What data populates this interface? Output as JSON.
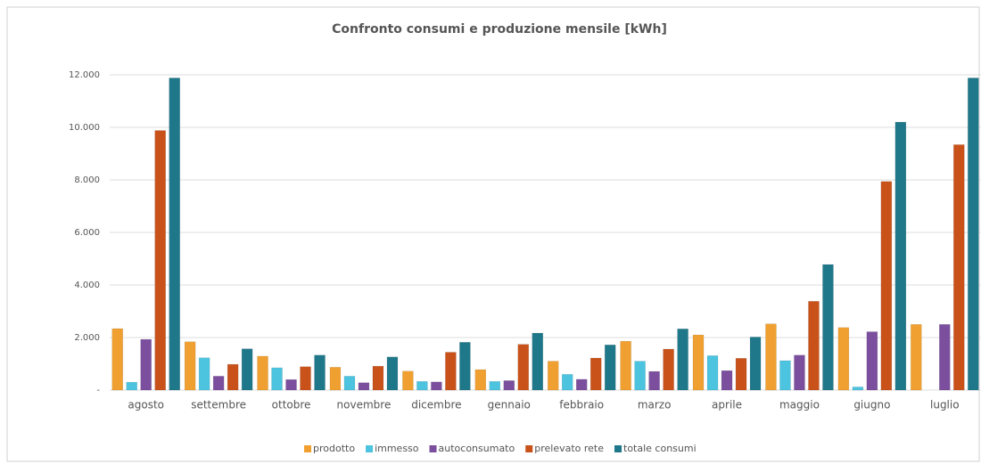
{
  "chart_data": {
    "type": "bar",
    "title": "Confronto consumi e produzione mensile [kWh]",
    "categories": [
      "agosto",
      "settembre",
      "ottobre",
      "novembre",
      "dicembre",
      "gennaio",
      "febbraio",
      "marzo",
      "aprile",
      "maggio",
      "giugno",
      "luglio"
    ],
    "series": [
      {
        "name": "prodotto",
        "color": "#f0a030",
        "values": [
          2340,
          1840,
          1290,
          870,
          720,
          780,
          1100,
          1860,
          2100,
          2520,
          2380,
          2500
        ]
      },
      {
        "name": "immesso",
        "color": "#4cc3df",
        "values": [
          300,
          1230,
          850,
          530,
          330,
          330,
          600,
          1100,
          1310,
          1120,
          120,
          0
        ]
      },
      {
        "name": "autoconsumato",
        "color": "#7b4f9e",
        "values": [
          1930,
          530,
          400,
          280,
          310,
          360,
          410,
          710,
          740,
          1330,
          2220,
          2500
        ]
      },
      {
        "name": "prelevato rete",
        "color": "#c9521b",
        "values": [
          9880,
          980,
          890,
          910,
          1440,
          1740,
          1220,
          1560,
          1210,
          3380,
          7940,
          9340
        ]
      },
      {
        "name": "totale consumi",
        "color": "#1f788a",
        "values": [
          11880,
          1570,
          1330,
          1260,
          1820,
          2170,
          1720,
          2330,
          2020,
          4780,
          10200,
          11880
        ]
      }
    ],
    "ylim": [
      0,
      12000
    ],
    "yticks": [
      {
        "value": 0,
        "label": "-"
      },
      {
        "value": 2000,
        "label": "2.000"
      },
      {
        "value": 4000,
        "label": "4.000"
      },
      {
        "value": 6000,
        "label": "6.000"
      },
      {
        "value": 8000,
        "label": "8.000"
      },
      {
        "value": 10000,
        "label": "10.000"
      },
      {
        "value": 12000,
        "label": "12.000"
      }
    ],
    "grid": true,
    "legend": "bottom"
  }
}
